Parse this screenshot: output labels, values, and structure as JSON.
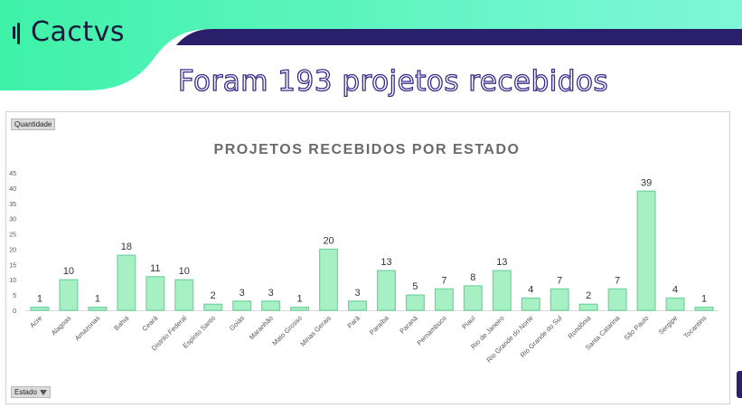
{
  "brand": {
    "name": "Cactvs"
  },
  "headline": "Foram 193 projetos recebidos",
  "pivot": {
    "value_field": "Quantidade",
    "row_field": "Estado"
  },
  "icons": {
    "logo": "cactus-bars-icon",
    "filter": "filter-dropdown-icon"
  },
  "colors": {
    "bar_fill": "#a6f0c4",
    "bar_stroke": "#6fd4a0",
    "banner_green": "#3ef2a8",
    "banner_purple": "#2a1f6a"
  },
  "chart_data": {
    "type": "bar",
    "title": "PROJETOS RECEBIDOS POR ESTADO",
    "xlabel": "",
    "ylabel": "",
    "ylim": [
      0,
      45
    ],
    "yticks": [
      0,
      5,
      10,
      15,
      20,
      25,
      30,
      35,
      40,
      45
    ],
    "grid": false,
    "legend": "none",
    "categories": [
      "Acre",
      "Alagoas",
      "Amazonas",
      "Bahia",
      "Ceará",
      "Distrito Federal",
      "Espírito Santo",
      "Goiás",
      "Maranhão",
      "Mato Grosso",
      "Minas Gerais",
      "Pará",
      "Paraíba",
      "Paraná",
      "Pernambuco",
      "Piauí",
      "Rio de Janeiro",
      "Rio Grande do Norte",
      "Rio Grande do Sul",
      "Rondônia",
      "Santa Catarina",
      "São Paulo",
      "Sergipe",
      "Tocantins"
    ],
    "values": [
      1,
      10,
      1,
      18,
      11,
      10,
      2,
      3,
      3,
      1,
      20,
      3,
      13,
      5,
      7,
      8,
      13,
      4,
      7,
      2,
      7,
      39,
      4,
      1
    ]
  }
}
